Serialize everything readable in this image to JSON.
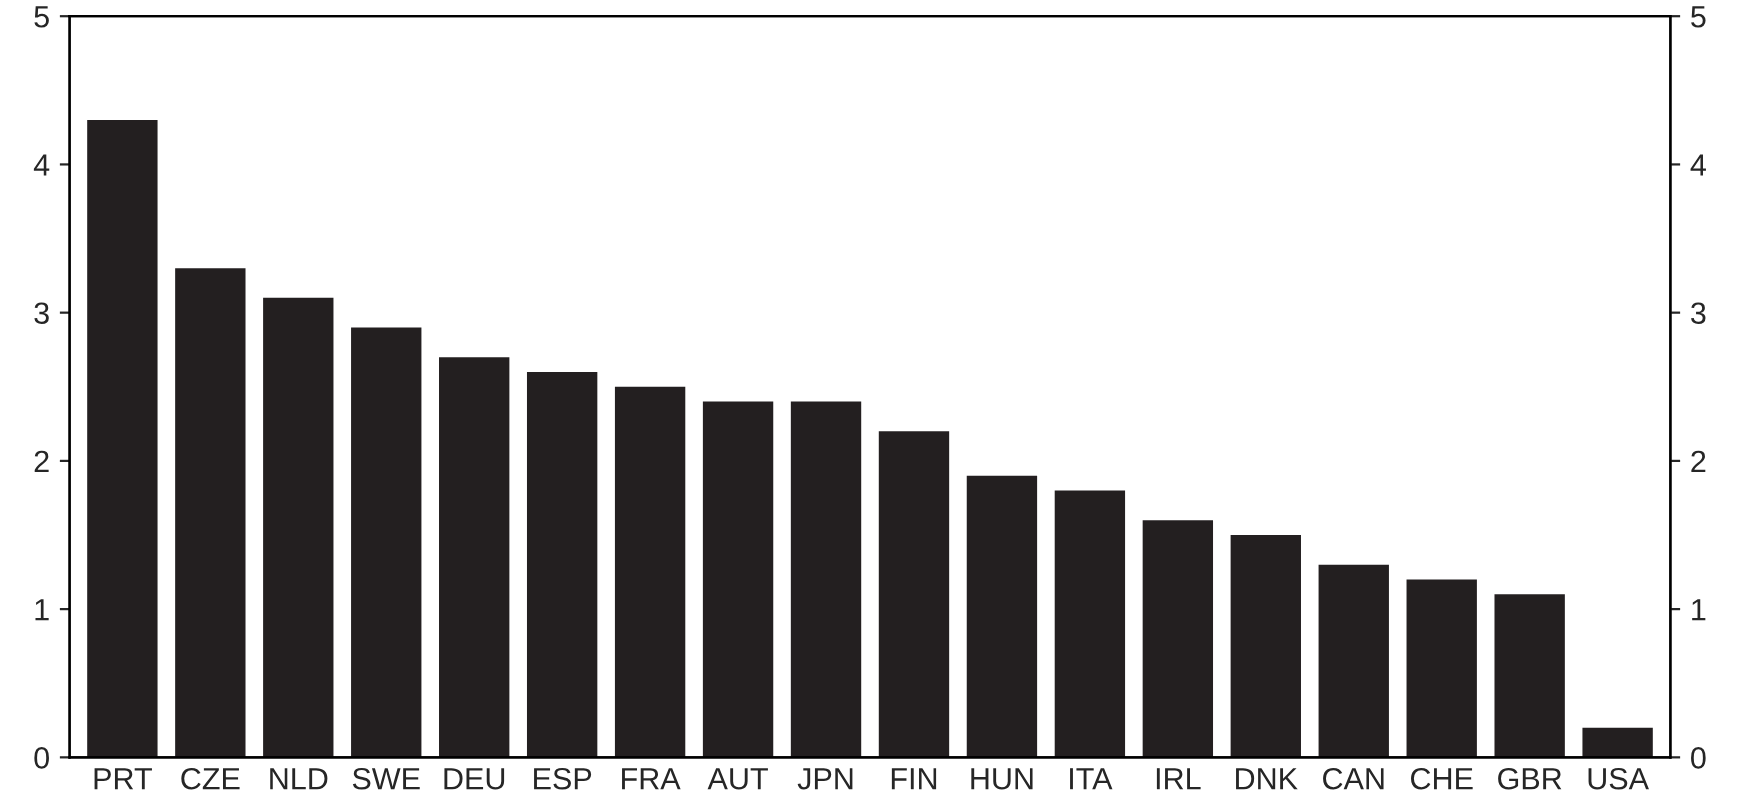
{
  "chart_data": {
    "type": "bar",
    "categories": [
      "PRT",
      "CZE",
      "NLD",
      "SWE",
      "DEU",
      "ESP",
      "FRA",
      "AUT",
      "JPN",
      "FIN",
      "HUN",
      "ITA",
      "IRL",
      "DNK",
      "CAN",
      "CHE",
      "GBR",
      "USA"
    ],
    "values": [
      4.3,
      3.3,
      3.1,
      2.9,
      2.7,
      2.6,
      2.5,
      2.4,
      2.4,
      2.2,
      1.9,
      1.8,
      1.6,
      1.5,
      1.3,
      1.2,
      1.1,
      0.2
    ],
    "color": "#231f20",
    "ylim": [
      0,
      5
    ],
    "yticks": [
      0,
      1,
      2,
      3,
      4,
      5
    ],
    "y2lim": [
      0,
      5
    ],
    "y2ticks": [
      0,
      1,
      2,
      3,
      4,
      5
    ],
    "grid": false,
    "legend": false
  }
}
